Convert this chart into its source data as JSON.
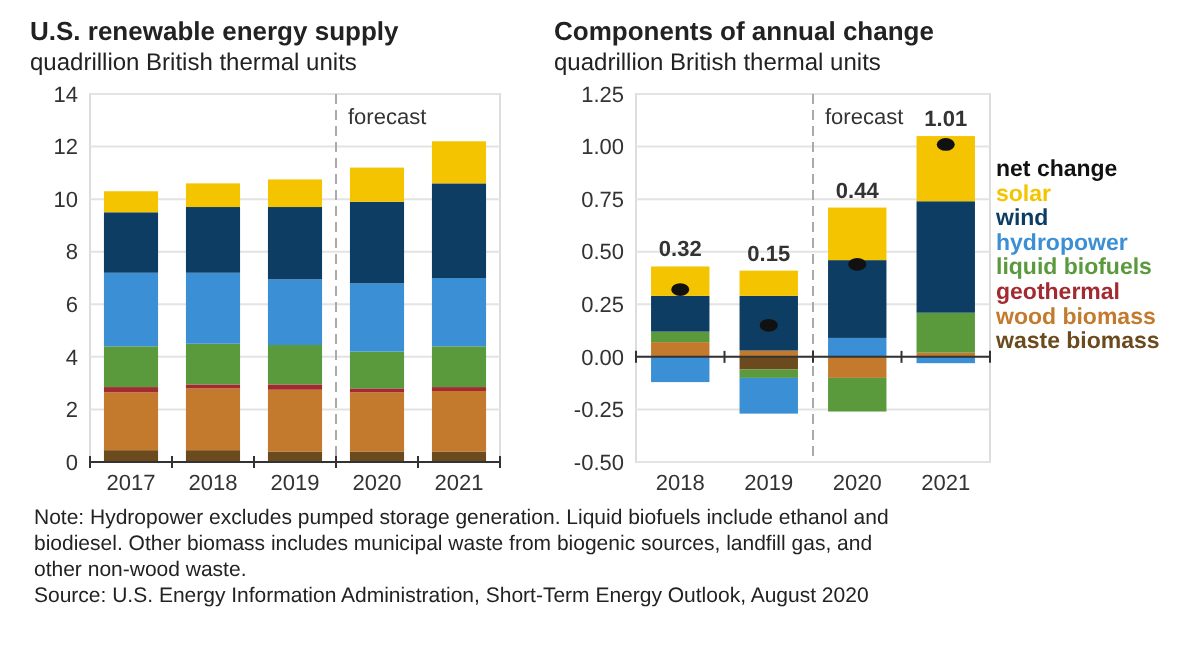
{
  "chart_data": [
    {
      "type": "bar",
      "title": "U.S. renewable energy supply",
      "subtitle": "quadrillion British thermal units",
      "categories": [
        "2017",
        "2018",
        "2019",
        "2020",
        "2021"
      ],
      "stacked": true,
      "ylim": [
        0,
        14
      ],
      "yticks": [
        0,
        2,
        4,
        6,
        8,
        10,
        12,
        14
      ],
      "grid": "y",
      "legend": false,
      "series": [
        {
          "color": "#6b4a1e",
          "values": [
            0.45,
            0.45,
            0.4,
            0.4,
            0.4
          ]
        },
        {
          "color": "#c47a2c",
          "values": [
            2.2,
            2.35,
            2.35,
            2.25,
            2.3
          ]
        },
        {
          "color": "#a32a30",
          "values": [
            0.2,
            0.15,
            0.2,
            0.15,
            0.15
          ]
        },
        {
          "color": "#5a9a3c",
          "values": [
            1.55,
            1.55,
            1.5,
            1.4,
            1.55
          ]
        },
        {
          "color": "#3b8fd4",
          "values": [
            2.8,
            2.7,
            2.5,
            2.6,
            2.6
          ]
        },
        {
          "color": "#0e3d63",
          "values": [
            2.3,
            2.5,
            2.75,
            3.1,
            3.6
          ]
        },
        {
          "color": "#f5c400",
          "values": [
            0.8,
            0.9,
            1.05,
            1.3,
            1.6
          ]
        }
      ],
      "ref_lines": [
        {
          "axis": "x",
          "value": "2020",
          "label": "forecast",
          "color": "#aaaaaa",
          "line_style": "dashed"
        }
      ],
      "annotations": [
        "Note: Hydropower excludes pumped storage generation.  Liquid biofuels include ethanol and biodiesel.  Other biomass includes municipal waste from biogenic sources, landfill gas, and other non-wood waste.",
        "Source: U.S. Energy Information Administration, Short-Term Energy Outlook, August 2020"
      ]
    },
    {
      "type": "bar",
      "title": "Components of annual change",
      "subtitle": "quadrillion British thermal units",
      "categories": [
        "2018",
        "2019",
        "2020",
        "2021"
      ],
      "stacked": true,
      "ylim": [
        -0.5,
        1.25
      ],
      "yticks": [
        {
          "value": -0.5,
          "label": "-0.50"
        },
        {
          "value": -0.25,
          "label": "-0.25"
        },
        {
          "value": 0,
          "label": "0.00"
        },
        {
          "value": 0.25,
          "label": "0.25"
        },
        {
          "value": 0.5,
          "label": "0.50"
        },
        {
          "value": 0.75,
          "label": "0.75"
        },
        {
          "value": 1,
          "label": "1.00"
        },
        {
          "value": 1.25,
          "label": "1.25"
        }
      ],
      "grid": "y",
      "legend": "right",
      "series": [
        {
          "name": "waste biomass",
          "color": "#6b4a1e",
          "values": [
            0,
            -0.06,
            0,
            0
          ]
        },
        {
          "name": "wood biomass",
          "color": "#c47a2c",
          "values": [
            0.07,
            0.03,
            -0.1,
            0.02
          ]
        },
        {
          "name": "geothermal",
          "color": "#a32a30",
          "values": [
            0,
            0,
            0,
            0
          ]
        },
        {
          "name": "liquid biofuels",
          "color": "#5a9a3c",
          "values": [
            0.05,
            -0.04,
            -0.16,
            0.19
          ]
        },
        {
          "name": "hydropower",
          "color": "#3b8fd4",
          "values": [
            -0.12,
            -0.17,
            0.09,
            -0.03
          ]
        },
        {
          "name": "wind",
          "color": "#0e3d63",
          "values": [
            0.17,
            0.26,
            0.37,
            0.53
          ]
        },
        {
          "name": "solar",
          "color": "#f5c400",
          "values": [
            0.14,
            0.12,
            0.25,
            0.31
          ]
        },
        {
          "name": "net change",
          "type": "scatter",
          "color": "#111111",
          "values": [
            0.32,
            0.15,
            0.44,
            1.01
          ],
          "value_labels": [
            "0.32",
            "0.15",
            "0.44",
            "1.01"
          ]
        }
      ],
      "ref_lines": [
        {
          "axis": "x",
          "value": "2020",
          "label": "forecast",
          "color": "#aaaaaa",
          "line_style": "dashed"
        }
      ]
    }
  ]
}
